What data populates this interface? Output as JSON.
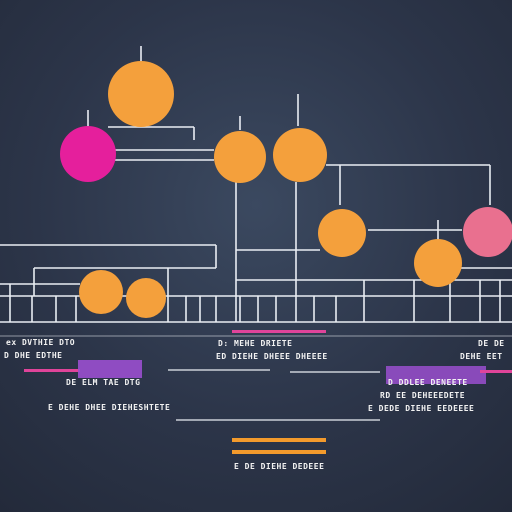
{
  "colors": {
    "background": "#2f3a4e",
    "line": "#e9edf3",
    "node_orange": "#f4a03c",
    "node_magenta": "#e51f9c",
    "node_pink": "#e9708f",
    "bar_pink": "#e0449a",
    "bar_purple": "#9a4fcf",
    "bar_orange": "#f39a2c"
  },
  "labels": {
    "left_top": "ex DVTHIE DTO",
    "left_mid": "D DHE EDTHE",
    "left_low1": "DE ELM TAE DTG",
    "left_low2": "E DEHE DHEE DIEHESHTETE",
    "mid_top": "D: MEHE DRIETE",
    "mid_mid": "ED DIEHE DHEEE DHEEEE",
    "right_top": "DE DE",
    "right_mid": "DEHE EET",
    "right_low1": "D DDLEE DENEETE",
    "right_low2": "RD EE DEHEEEDETE",
    "right_low3": "E DEDE DIEHE EEDEEEE",
    "bottom": "E DE DIEHE DEDEEE"
  }
}
